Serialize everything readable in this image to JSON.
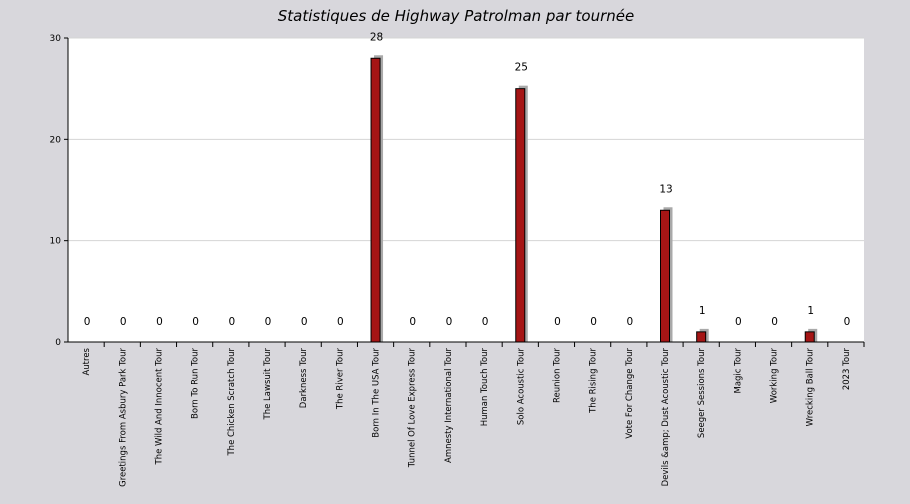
{
  "chart_data": {
    "type": "bar",
    "title": "Statistiques de Highway Patrolman par tournée",
    "xlabel": "",
    "ylabel": "",
    "ylim": [
      0,
      30
    ],
    "yticks": [
      0,
      10,
      20,
      30
    ],
    "grid": true,
    "bar_color": "#a51515",
    "shadow_color": "#a9a9a9",
    "categories": [
      "Autres",
      "Greetings From Asbury Park Tour",
      "The Wild And Innocent Tour",
      "Born To Run Tour",
      "The Chicken Scratch Tour",
      "The Lawsuit Tour",
      "Darkness Tour",
      "The River Tour",
      "Born In The USA Tour",
      "Tunnel Of Love Express Tour",
      "Amnesty International Tour",
      "Human Touch Tour",
      "Solo Acoustic Tour",
      "Reunion Tour",
      "The Rising Tour",
      "Vote For Change Tour",
      "Devils &amp; Dust Acoustic Tour",
      "Seeger Sessions Tour",
      "Magic Tour",
      "Working Tour",
      "Wrecking Ball Tour",
      "2023 Tour"
    ],
    "values": [
      0,
      0,
      0,
      0,
      0,
      0,
      0,
      0,
      28,
      0,
      0,
      0,
      25,
      0,
      0,
      0,
      13,
      1,
      0,
      0,
      1,
      0
    ],
    "value_labels": [
      "0",
      "0",
      "0",
      "0",
      "0",
      "0",
      "0",
      "0",
      "28",
      "0",
      "0",
      "0",
      "25",
      "0",
      "0",
      "0",
      "13",
      "1",
      "0",
      "0",
      "1",
      "0"
    ]
  }
}
